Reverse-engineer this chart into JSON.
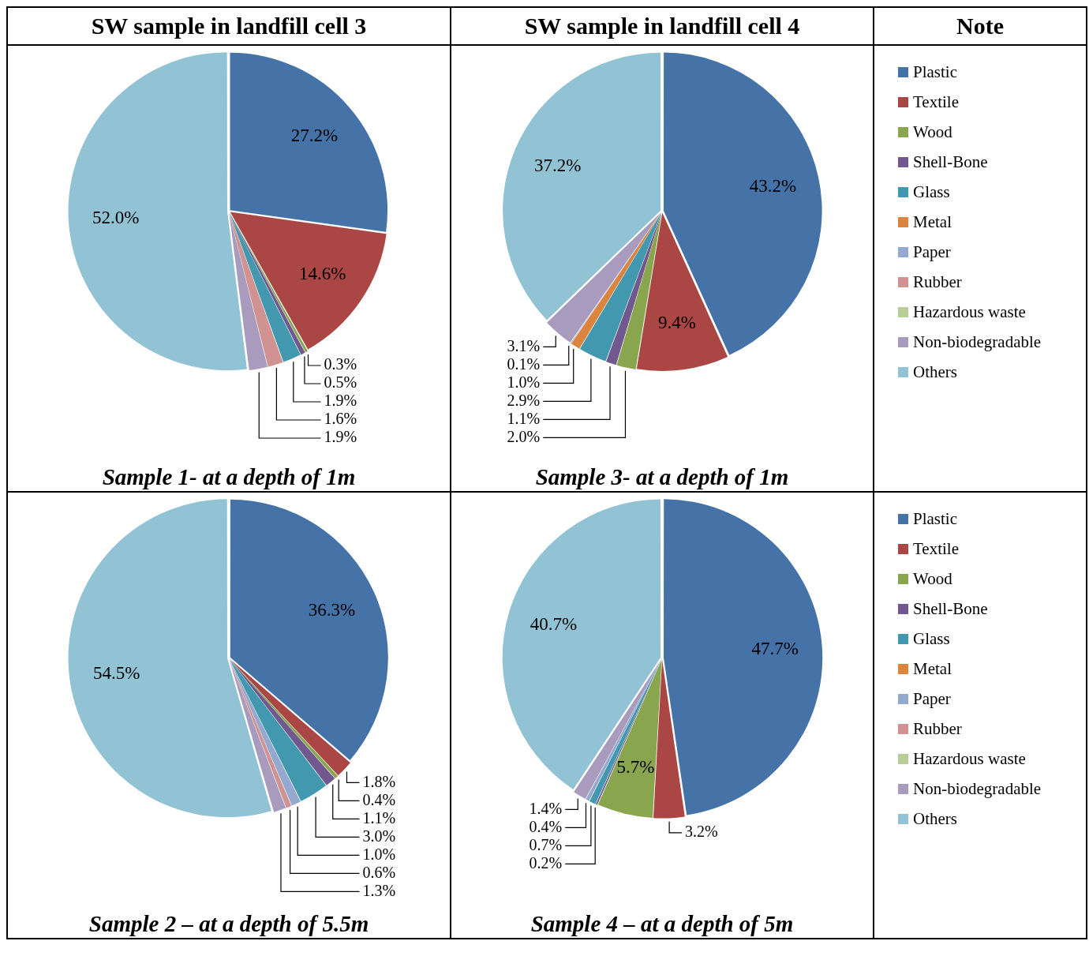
{
  "chart_data": [
    {
      "type": "pie",
      "title": "SW sample in landfill cell 3",
      "subtitle": "Sample 1- at a depth of 1m",
      "categories": [
        null,
        null,
        null,
        null,
        null,
        null,
        null,
        null,
        null,
        null,
        null
      ],
      "values": [
        27.2,
        14.6,
        0.3,
        0.5,
        1.9,
        0,
        0,
        1.6,
        0,
        1.9,
        52.0
      ],
      "value_labels": [
        "27.2%",
        "14.6%",
        "0.3%",
        "0.5%",
        "1.9%",
        null,
        null,
        "1.6%",
        null,
        "1.9%",
        "52.0%"
      ],
      "colors": [
        "#4572a7",
        "#aa4643",
        "#89a54e",
        "#71588f",
        "#4198af",
        "#db843d",
        "#93a9cf",
        "#d19392",
        "#b9cd96",
        "#a99bbd",
        "#92c3d4"
      ],
      "legend": false
    },
    {
      "type": "pie",
      "title": "SW sample in landfill cell 4",
      "subtitle": "Sample 3- at a depth of 1m",
      "legend_title": "Note",
      "categories": [
        "Plastic",
        "Textile",
        "Wood",
        "Shell-Bone",
        "Glass",
        "Metal",
        "Paper",
        "Rubber",
        "Hazardous waste",
        "Non-biodegradable",
        "Others"
      ],
      "values": [
        43.2,
        9.4,
        2.0,
        1.1,
        2.9,
        1.0,
        0.1,
        0,
        0,
        3.1,
        37.2
      ],
      "value_labels": [
        "43.2%",
        "9.4%",
        "2.0%",
        "1.1%",
        "2.9%",
        "1.0%",
        "0.1%",
        null,
        null,
        "3.1%",
        "37.2%"
      ],
      "colors": [
        "#4572a7",
        "#aa4643",
        "#89a54e",
        "#71588f",
        "#4198af",
        "#db843d",
        "#93a9cf",
        "#d19392",
        "#b9cd96",
        "#a99bbd",
        "#92c3d4"
      ],
      "legend": "right"
    },
    {
      "type": "pie",
      "subtitle": "Sample 2 – at a depth of 5.5m",
      "categories": [
        null,
        null,
        null,
        null,
        null,
        null,
        null,
        null,
        null,
        null,
        null
      ],
      "values": [
        36.3,
        1.8,
        0.4,
        1.1,
        3.0,
        0,
        1.0,
        0.6,
        0,
        1.3,
        54.5
      ],
      "value_labels": [
        "36.3%",
        "1.8%",
        "0.4%",
        "1.1%",
        "3.0%",
        null,
        "1.0%",
        "0.6%",
        null,
        "1.3%",
        "54.5%"
      ],
      "colors": [
        "#4572a7",
        "#aa4643",
        "#89a54e",
        "#71588f",
        "#4198af",
        "#db843d",
        "#93a9cf",
        "#d19392",
        "#b9cd96",
        "#a99bbd",
        "#92c3d4"
      ],
      "legend": false
    },
    {
      "type": "pie",
      "subtitle": "Sample 4 – at a depth of 5m",
      "categories": [
        "Plastic",
        "Textile",
        "Wood",
        "Shell-Bone",
        "Glass",
        "Metal",
        "Paper",
        "Rubber",
        "Hazardous waste",
        "Non-biodegradable",
        "Others"
      ],
      "values": [
        47.7,
        3.2,
        5.7,
        0.2,
        0.7,
        0,
        0.4,
        0,
        0,
        1.4,
        40.7
      ],
      "value_labels": [
        "47.7%",
        "3.2%",
        "5.7%",
        "0.2%",
        "0.7%",
        null,
        "0.4%",
        null,
        null,
        "1.4%",
        "40.7%"
      ],
      "colors": [
        "#4572a7",
        "#aa4643",
        "#89a54e",
        "#71588f",
        "#4198af",
        "#db843d",
        "#93a9cf",
        "#d19392",
        "#b9cd96",
        "#a99bbd",
        "#92c3d4"
      ],
      "legend": "right"
    }
  ]
}
